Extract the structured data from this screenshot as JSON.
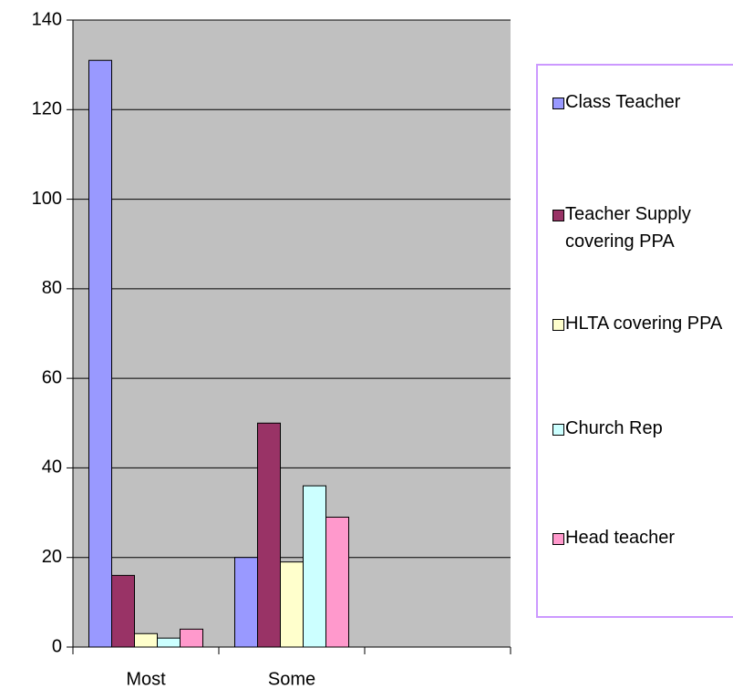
{
  "chart_data": {
    "type": "bar",
    "categories": [
      "Most",
      "Some",
      null
    ],
    "series": [
      {
        "name": "Class Teacher",
        "color": "#9999ff",
        "values": [
          131,
          20,
          null
        ]
      },
      {
        "name": "Teacher Supply covering PPA",
        "color": "#993366",
        "values": [
          16,
          50,
          null
        ]
      },
      {
        "name": "HLTA covering PPA",
        "color": "#ffffcc",
        "values": [
          3,
          19,
          null
        ]
      },
      {
        "name": "Church Rep",
        "color": "#ccffff",
        "values": [
          2,
          36,
          null
        ]
      },
      {
        "name": "Head teacher",
        "color": "#ff99cc",
        "values": [
          4,
          29,
          null
        ]
      }
    ],
    "ylim": [
      0,
      140
    ],
    "yticks": [
      0,
      20,
      40,
      60,
      80,
      100,
      120,
      140
    ],
    "grid": true,
    "legend": "right",
    "plot_background": "#c0c0c0"
  }
}
